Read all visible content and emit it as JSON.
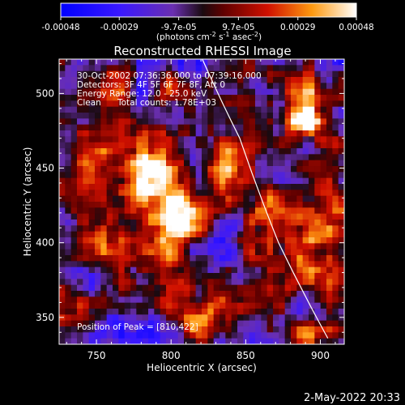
{
  "colorbar": {
    "ticks": [
      "-0.00048",
      "-0.00029",
      "-9.7e-05",
      "9.7e-05",
      "0.00029",
      "0.00048"
    ],
    "unit_text": "(photons cm",
    "unit_exp1": "-2",
    "unit_mid": " s",
    "unit_exp2": "-1",
    "unit_end": " asec",
    "unit_exp3": "-2",
    "unit_close": ")"
  },
  "annotation": {
    "time_range": "30-Oct-2002 07:36:36.000 to 07:39:16.000",
    "detectors": "Detectors: 3F 4F 5F 6F 7F 8F, Att 0",
    "energy": "Energy Range: 12.0 - 25.0 keV",
    "method": "Clean",
    "counts": "Total counts: 1.78E+03",
    "peak": "Position of Peak = [810,422]"
  },
  "footer": {
    "date": "2-May-2022 20:33"
  },
  "chart_data": {
    "type": "heatmap",
    "title": "Reconstructed RHESSI Image",
    "xlabel": "Heliocentric X (arcsec)",
    "ylabel": "Heliocentric Y (arcsec)",
    "xlim": [
      725,
      916
    ],
    "ylim": [
      332,
      523
    ],
    "xticks": [
      750,
      800,
      850,
      900
    ],
    "yticks": [
      350,
      400,
      450,
      500
    ],
    "colorscale_range": [
      -0.00048,
      0.00048
    ],
    "peak": {
      "x": 810,
      "y": 422,
      "value": 0.00048
    },
    "bright_sources": [
      {
        "x": 810,
        "y": 422,
        "value": 0.00048,
        "spread": 13
      },
      {
        "x": 887,
        "y": 481,
        "value": 0.00042,
        "spread": 12
      },
      {
        "x": 794,
        "y": 475,
        "value": 0.00028,
        "spread": 10
      },
      {
        "x": 862,
        "y": 423,
        "value": 0.00026,
        "spread": 11
      },
      {
        "x": 780,
        "y": 445,
        "value": 0.00025,
        "spread": 14
      },
      {
        "x": 840,
        "y": 450,
        "value": 0.00022,
        "spread": 12
      },
      {
        "x": 820,
        "y": 345,
        "value": 0.00024,
        "spread": 12
      },
      {
        "x": 765,
        "y": 378,
        "value": 0.00018,
        "spread": 10
      },
      {
        "x": 745,
        "y": 405,
        "value": 0.00016,
        "spread": 9
      },
      {
        "x": 860,
        "y": 370,
        "value": 0.00014,
        "spread": 10
      }
    ],
    "limb_curve": [
      [
        817,
        532
      ],
      [
        846,
        470
      ],
      [
        872,
        400
      ],
      [
        905,
        336
      ]
    ]
  }
}
